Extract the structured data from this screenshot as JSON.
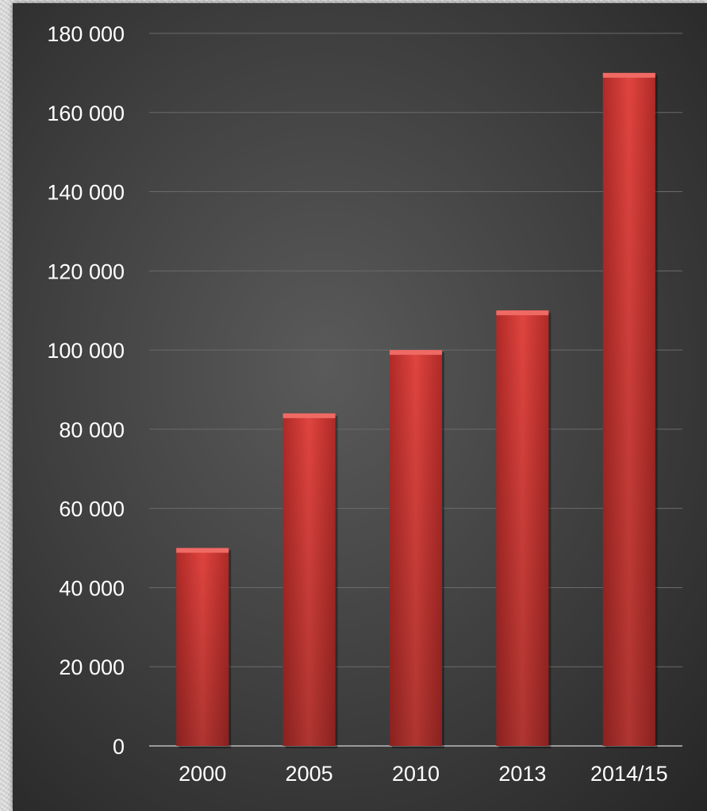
{
  "chart_data": {
    "type": "bar",
    "categories": [
      "2000",
      "2005",
      "2010",
      "2013",
      "2014/15"
    ],
    "values": [
      50000,
      84000,
      100000,
      110000,
      170000
    ],
    "ylim": [
      0,
      180000
    ],
    "yticks": [
      "0",
      "20 000",
      "40 000",
      "60 000",
      "80 000",
      "100 000",
      "120 000",
      "140 000",
      "160 000",
      "180 000"
    ],
    "grid": true,
    "bar_color": "#d9403c"
  }
}
